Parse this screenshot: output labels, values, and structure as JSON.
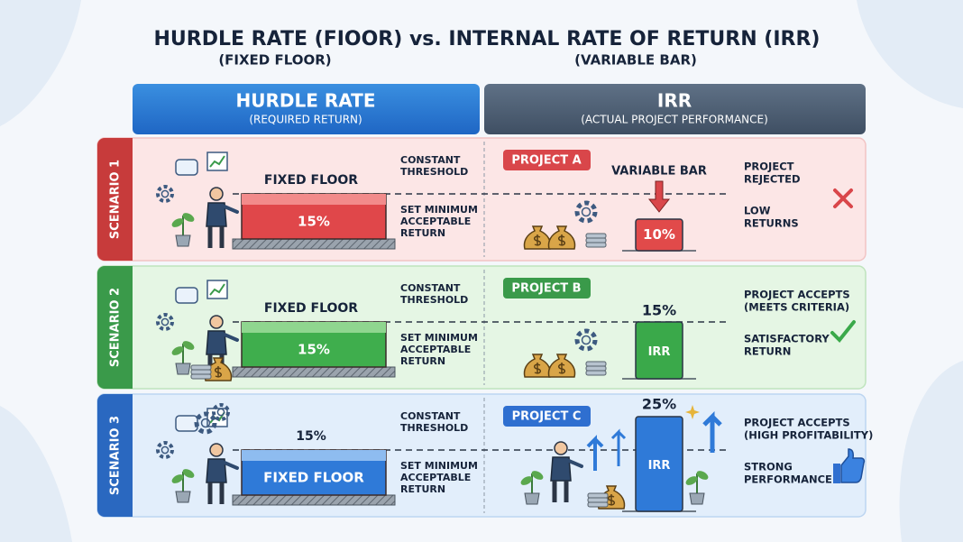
{
  "header": {
    "title": "HURDLE RATE (FIOOR) vs. INTERNAL RATE OF RETURN (IRR)",
    "left_subtitle": "(FIXED FLOOR)",
    "right_subtitle": "(VARIABLE BAR)"
  },
  "columns": [
    {
      "title": "HURDLE RATE",
      "subtitle": "(REQUIRED RETURN)"
    },
    {
      "title": "IRR",
      "subtitle": "(ACTUAL PROJECT PERFORMANCE)"
    }
  ],
  "scenarios": [
    {
      "label": "SCENARIO 1",
      "floor_above": "FIXED FLOOR",
      "floor_inside": "15%",
      "notes": [
        [
          "CONSTANT",
          "THRESHOLD"
        ],
        [
          "SET MINIMUM",
          "ACCEPTABLE",
          "RETURN"
        ]
      ],
      "project": "PROJECT A",
      "bar_above": "VARIABLE BAR",
      "bar_inside": "10%",
      "results": [
        [
          "PROJECT",
          "REJECTED"
        ],
        [
          "LOW",
          "RETURNS"
        ]
      ]
    },
    {
      "label": "SCENARIO 2",
      "floor_above": "FIXED FLOOR",
      "floor_inside": "15%",
      "notes": [
        [
          "CONSTANT",
          "THRESHOLD"
        ],
        [
          "SET MINIMUM",
          "ACCEPTABLE",
          "RETURN"
        ]
      ],
      "project": "PROJECT B",
      "bar_above": "15%",
      "bar_inside": "IRR",
      "results": [
        [
          "PROJECT ACCEPTS",
          "(MEETS CRITERIA)"
        ],
        [
          "SATISFACTORY",
          "RETURN"
        ]
      ]
    },
    {
      "label": "SCENARIO 3",
      "floor_above": "15%",
      "floor_inside": "FIXED FLOOR",
      "notes": [
        [
          "CONSTANT",
          "THRESHOLD"
        ],
        [
          "SET MINIMUM",
          "ACCEPTABLE",
          "RETURN"
        ]
      ],
      "project": "PROJECT C",
      "bar_above": "25%",
      "bar_inside": "IRR",
      "results": [
        [
          "PROJECT ACCEPTS",
          "(HIGH PROFITABILITY)"
        ],
        [
          "STRONG",
          "PERFORMANCE"
        ]
      ]
    }
  ]
}
